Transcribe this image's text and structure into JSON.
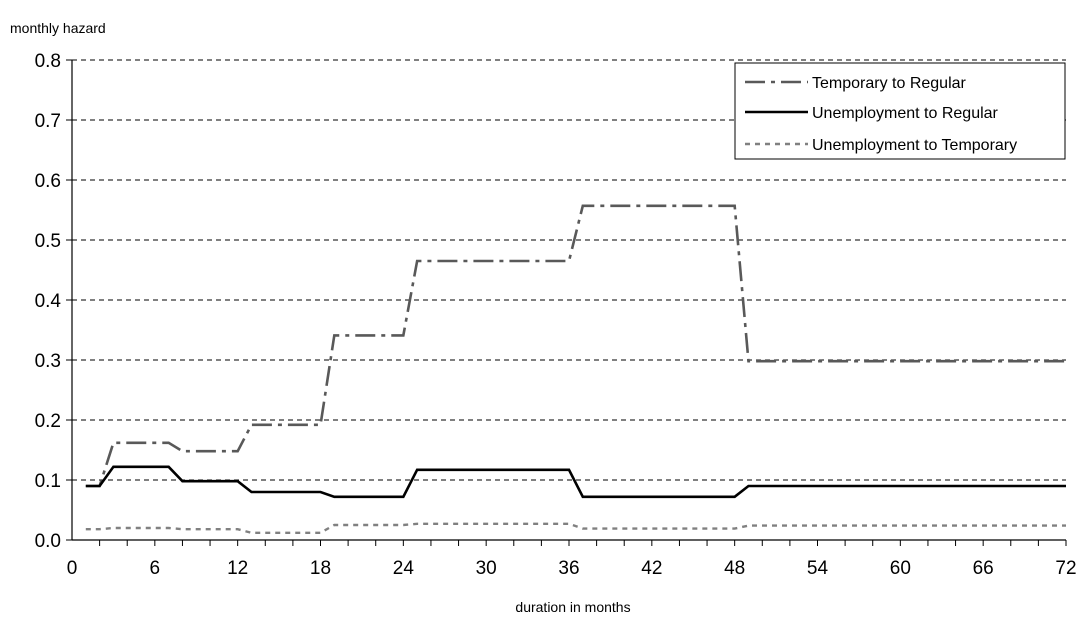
{
  "chart_data": {
    "type": "line",
    "title": "",
    "xlabel": "duration in months",
    "ylabel": "monthly hazard",
    "xlim": [
      0,
      72
    ],
    "ylim": [
      0,
      0.8
    ],
    "x_ticks": [
      0,
      6,
      12,
      18,
      24,
      30,
      36,
      42,
      48,
      54,
      60,
      66,
      72
    ],
    "x_minor_step": 2,
    "y_ticks": [
      "0.0",
      "0.1",
      "0.2",
      "0.3",
      "0.4",
      "0.5",
      "0.6",
      "0.7",
      "0.8"
    ],
    "grid": "horizontal dashed",
    "legend_position": "top-right",
    "series": [
      {
        "name": "Temporary to Regular",
        "color": "#595959",
        "style": "dash-dot",
        "points": [
          [
            1,
            0.09
          ],
          [
            2,
            0.09
          ],
          [
            3,
            0.162
          ],
          [
            7,
            0.162
          ],
          [
            8,
            0.148
          ],
          [
            12,
            0.148
          ],
          [
            13,
            0.192
          ],
          [
            18,
            0.192
          ],
          [
            19,
            0.341
          ],
          [
            24,
            0.341
          ],
          [
            25,
            0.465
          ],
          [
            36,
            0.465
          ],
          [
            37,
            0.557
          ],
          [
            48,
            0.557
          ],
          [
            49,
            0.298
          ],
          [
            72,
            0.298
          ]
        ]
      },
      {
        "name": "Unemployment to Regular",
        "color": "#000000",
        "style": "solid",
        "points": [
          [
            1,
            0.09
          ],
          [
            2,
            0.09
          ],
          [
            3,
            0.122
          ],
          [
            7,
            0.122
          ],
          [
            8,
            0.098
          ],
          [
            12,
            0.098
          ],
          [
            13,
            0.08
          ],
          [
            18,
            0.08
          ],
          [
            19,
            0.072
          ],
          [
            24,
            0.072
          ],
          [
            25,
            0.117
          ],
          [
            36,
            0.117
          ],
          [
            37,
            0.072
          ],
          [
            48,
            0.072
          ],
          [
            49,
            0.09
          ],
          [
            72,
            0.09
          ]
        ]
      },
      {
        "name": "Unemployment to Temporary",
        "color": "#808080",
        "style": "dotted",
        "points": [
          [
            1,
            0.018
          ],
          [
            2,
            0.018
          ],
          [
            3,
            0.02
          ],
          [
            7,
            0.02
          ],
          [
            8,
            0.018
          ],
          [
            12,
            0.018
          ],
          [
            13,
            0.012
          ],
          [
            18,
            0.012
          ],
          [
            19,
            0.025
          ],
          [
            24,
            0.025
          ],
          [
            25,
            0.027
          ],
          [
            36,
            0.027
          ],
          [
            37,
            0.019
          ],
          [
            48,
            0.019
          ],
          [
            49,
            0.024
          ],
          [
            72,
            0.024
          ]
        ]
      }
    ]
  }
}
